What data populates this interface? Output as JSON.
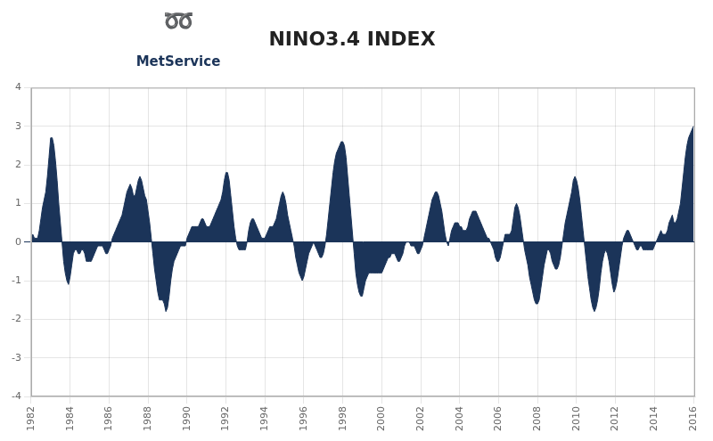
{
  "chart_data": {
    "type": "area",
    "title": "NINO3.4 INDEX",
    "annotations": [
      "➿",
      "MetService"
    ],
    "color": "#1b3459",
    "grid": true,
    "xlim": [
      1982,
      2016.09
    ],
    "xticks": [
      1982,
      1984,
      1986,
      1988,
      1990,
      1992,
      1994,
      1996,
      1998,
      2000,
      2002,
      2004,
      2006,
      2008,
      2010,
      2012,
      2014,
      2016
    ],
    "ylim": [
      -4,
      4
    ],
    "yticks": [
      -4,
      -3,
      -2,
      -1,
      0,
      1,
      2,
      3,
      4
    ],
    "x": [
      1982,
      1982.0833333333333,
      1982.1666666666667,
      1982.25,
      1982.3333333333333,
      1982.4166666666667,
      1982.5,
      1982.5833333333333,
      1982.6666666666667,
      1982.75,
      1982.8333333333333,
      1982.9166666666667,
      1983,
      1983.0833333333333,
      1983.1666666666667,
      1983.25,
      1983.3333333333333,
      1983.4166666666667,
      1983.5,
      1983.5833333333333,
      1983.6666666666667,
      1983.75,
      1983.8333333333333,
      1983.9166666666667,
      1984,
      1984.0833333333333,
      1984.1666666666667,
      1984.25,
      1984.3333333333333,
      1984.4166666666667,
      1984.5,
      1984.5833333333333,
      1984.6666666666667,
      1984.75,
      1984.8333333333333,
      1984.9166666666667,
      1985,
      1985.0833333333333,
      1985.1666666666667,
      1985.25,
      1985.3333333333333,
      1985.4166666666667,
      1985.5,
      1985.5833333333333,
      1985.6666666666667,
      1985.75,
      1985.8333333333333,
      1985.9166666666667,
      1986,
      1986.0833333333333,
      1986.1666666666667,
      1986.25,
      1986.3333333333333,
      1986.4166666666667,
      1986.5,
      1986.5833333333333,
      1986.6666666666667,
      1986.75,
      1986.8333333333333,
      1986.9166666666667,
      1987,
      1987.0833333333333,
      1987.1666666666667,
      1987.25,
      1987.3333333333333,
      1987.4166666666667,
      1987.5,
      1987.5833333333333,
      1987.6666666666667,
      1987.75,
      1987.8333333333333,
      1987.9166666666667,
      1988,
      1988.0833333333333,
      1988.1666666666667,
      1988.25,
      1988.3333333333333,
      1988.4166666666667,
      1988.5,
      1988.5833333333333,
      1988.6666666666667,
      1988.75,
      1988.8333333333333,
      1988.9166666666667,
      1989,
      1989.0833333333333,
      1989.1666666666667,
      1989.25,
      1989.3333333333333,
      1989.4166666666667,
      1989.5,
      1989.5833333333333,
      1989.6666666666667,
      1989.75,
      1989.8333333333333,
      1989.9166666666667,
      1990,
      1990.0833333333333,
      1990.1666666666667,
      1990.25,
      1990.3333333333333,
      1990.4166666666667,
      1990.5,
      1990.5833333333333,
      1990.6666666666667,
      1990.75,
      1990.8333333333333,
      1990.9166666666667,
      1991,
      1991.0833333333333,
      1991.1666666666667,
      1991.25,
      1991.3333333333333,
      1991.4166666666667,
      1991.5,
      1991.5833333333333,
      1991.6666666666667,
      1991.75,
      1991.8333333333333,
      1991.9166666666667,
      1992,
      1992.0833333333333,
      1992.1666666666667,
      1992.25,
      1992.3333333333333,
      1992.4166666666667,
      1992.5,
      1992.5833333333333,
      1992.6666666666667,
      1992.75,
      1992.8333333333333,
      1992.9166666666667,
      1993,
      1993.0833333333333,
      1993.1666666666667,
      1993.25,
      1993.3333333333333,
      1993.4166666666667,
      1993.5,
      1993.5833333333333,
      1993.6666666666667,
      1993.75,
      1993.8333333333333,
      1993.9166666666667,
      1994,
      1994.0833333333333,
      1994.1666666666667,
      1994.25,
      1994.3333333333333,
      1994.4166666666667,
      1994.5,
      1994.5833333333333,
      1994.6666666666667,
      1994.75,
      1994.8333333333333,
      1994.9166666666667,
      1995,
      1995.0833333333333,
      1995.1666666666667,
      1995.25,
      1995.3333333333333,
      1995.4166666666667,
      1995.5,
      1995.5833333333333,
      1995.6666666666667,
      1995.75,
      1995.8333333333333,
      1995.9166666666667,
      1996,
      1996.0833333333333,
      1996.1666666666667,
      1996.25,
      1996.3333333333333,
      1996.4166666666667,
      1996.5,
      1996.5833333333333,
      1996.6666666666667,
      1996.75,
      1996.8333333333333,
      1996.9166666666667,
      1997,
      1997.0833333333333,
      1997.1666666666667,
      1997.25,
      1997.3333333333333,
      1997.4166666666667,
      1997.5,
      1997.5833333333333,
      1997.6666666666667,
      1997.75,
      1997.8333333333333,
      1997.9166666666667,
      1998,
      1998.0833333333333,
      1998.1666666666667,
      1998.25,
      1998.3333333333333,
      1998.4166666666667,
      1998.5,
      1998.5833333333333,
      1998.6666666666667,
      1998.75,
      1998.8333333333333,
      1998.9166666666667,
      1999,
      1999.0833333333333,
      1999.1666666666667,
      1999.25,
      1999.3333333333333,
      1999.4166666666667,
      1999.5,
      1999.5833333333333,
      1999.6666666666667,
      1999.75,
      1999.8333333333333,
      1999.9166666666667,
      2000,
      2000.0833333333333,
      2000.1666666666667,
      2000.25,
      2000.3333333333333,
      2000.4166666666667,
      2000.5,
      2000.5833333333333,
      2000.6666666666667,
      2000.75,
      2000.8333333333333,
      2000.9166666666667,
      2001,
      2001.0833333333333,
      2001.1666666666667,
      2001.25,
      2001.3333333333333,
      2001.4166666666667,
      2001.5,
      2001.5833333333333,
      2001.6666666666667,
      2001.75,
      2001.8333333333333,
      2001.9166666666667,
      2002,
      2002.0833333333333,
      2002.1666666666667,
      2002.25,
      2002.3333333333333,
      2002.4166666666667,
      2002.5,
      2002.5833333333333,
      2002.6666666666667,
      2002.75,
      2002.8333333333333,
      2002.9166666666667,
      2003,
      2003.0833333333333,
      2003.1666666666667,
      2003.25,
      2003.3333333333333,
      2003.4166666666667,
      2003.5,
      2003.5833333333333,
      2003.6666666666667,
      2003.75,
      2003.8333333333333,
      2003.9166666666667,
      2004,
      2004.0833333333333,
      2004.1666666666667,
      2004.25,
      2004.3333333333333,
      2004.4166666666667,
      2004.5,
      2004.5833333333333,
      2004.6666666666667,
      2004.75,
      2004.8333333333333,
      2004.9166666666667,
      2005,
      2005.0833333333333,
      2005.1666666666667,
      2005.25,
      2005.3333333333333,
      2005.4166666666667,
      2005.5,
      2005.5833333333333,
      2005.6666666666667,
      2005.75,
      2005.8333333333333,
      2005.9166666666667,
      2006,
      2006.0833333333333,
      2006.1666666666667,
      2006.25,
      2006.3333333333333,
      2006.4166666666667,
      2006.5,
      2006.5833333333333,
      2006.6666666666667,
      2006.75,
      2006.8333333333333,
      2006.9166666666667,
      2007,
      2007.0833333333333,
      2007.1666666666667,
      2007.25,
      2007.3333333333333,
      2007.4166666666667,
      2007.5,
      2007.5833333333333,
      2007.6666666666667,
      2007.75,
      2007.8333333333333,
      2007.9166666666667,
      2008,
      2008.0833333333333,
      2008.1666666666667,
      2008.25,
      2008.3333333333333,
      2008.4166666666667,
      2008.5,
      2008.5833333333333,
      2008.6666666666667,
      2008.75,
      2008.8333333333333,
      2008.9166666666667,
      2009,
      2009.0833333333333,
      2009.1666666666667,
      2009.25,
      2009.3333333333333,
      2009.4166666666667,
      2009.5,
      2009.5833333333333,
      2009.6666666666667,
      2009.75,
      2009.8333333333333,
      2009.9166666666667,
      2010,
      2010.0833333333333,
      2010.1666666666667,
      2010.25,
      2010.3333333333333,
      2010.4166666666667,
      2010.5,
      2010.5833333333333,
      2010.6666666666667,
      2010.75,
      2010.8333333333333,
      2010.9166666666667,
      2011,
      2011.0833333333333,
      2011.1666666666667,
      2011.25,
      2011.3333333333333,
      2011.4166666666667,
      2011.5,
      2011.5833333333333,
      2011.6666666666667,
      2011.75,
      2011.8333333333333,
      2011.9166666666667,
      2012,
      2012.0833333333333,
      2012.1666666666667,
      2012.25,
      2012.3333333333333,
      2012.4166666666667,
      2012.5,
      2012.5833333333333,
      2012.6666666666667,
      2012.75,
      2012.8333333333333,
      2012.9166666666667,
      2013,
      2013.0833333333333,
      2013.1666666666667,
      2013.25,
      2013.3333333333333,
      2013.4166666666667,
      2013.5,
      2013.5833333333333,
      2013.6666666666667,
      2013.75,
      2013.8333333333333,
      2013.9166666666667,
      2014,
      2014.0833333333333,
      2014.1666666666667,
      2014.25,
      2014.3333333333333,
      2014.4166666666667,
      2014.5,
      2014.5833333333333,
      2014.6666666666667,
      2014.75,
      2014.8333333333333,
      2014.9166666666667,
      2015,
      2015.0833333333333,
      2015.1666666666667,
      2015.25,
      2015.3333333333333,
      2015.4166666666667,
      2015.5,
      2015.5833333333333,
      2015.6666666666667,
      2015.75,
      2015.8333333333333,
      2015.9166666666667,
      2016
    ],
    "values": [
      0.1,
      0.2,
      0.1,
      0.1,
      0.1,
      0.3,
      0.6,
      0.9,
      1.1,
      1.3,
      1.7,
      2.2,
      2.7,
      2.7,
      2.5,
      2.1,
      1.6,
      1.0,
      0.5,
      0.0,
      -0.5,
      -0.8,
      -1.0,
      -1.1,
      -0.9,
      -0.6,
      -0.3,
      -0.2,
      -0.2,
      -0.3,
      -0.3,
      -0.2,
      -0.2,
      -0.3,
      -0.5,
      -0.5,
      -0.5,
      -0.5,
      -0.4,
      -0.3,
      -0.2,
      -0.1,
      -0.1,
      -0.1,
      -0.1,
      -0.2,
      -0.3,
      -0.3,
      -0.2,
      -0.1,
      0.1,
      0.2,
      0.3,
      0.4,
      0.5,
      0.6,
      0.7,
      0.9,
      1.1,
      1.3,
      1.4,
      1.5,
      1.4,
      1.2,
      1.2,
      1.4,
      1.6,
      1.7,
      1.6,
      1.4,
      1.2,
      1.1,
      0.8,
      0.5,
      0.1,
      -0.3,
      -0.7,
      -1.0,
      -1.3,
      -1.5,
      -1.5,
      -1.5,
      -1.6,
      -1.8,
      -1.7,
      -1.4,
      -1.0,
      -0.7,
      -0.5,
      -0.4,
      -0.3,
      -0.2,
      -0.1,
      -0.1,
      -0.1,
      -0.1,
      0.1,
      0.2,
      0.3,
      0.4,
      0.4,
      0.4,
      0.4,
      0.4,
      0.5,
      0.6,
      0.6,
      0.5,
      0.4,
      0.4,
      0.4,
      0.5,
      0.6,
      0.7,
      0.8,
      0.9,
      1.0,
      1.1,
      1.3,
      1.6,
      1.8,
      1.8,
      1.6,
      1.2,
      0.8,
      0.4,
      0.1,
      -0.1,
      -0.2,
      -0.2,
      -0.2,
      -0.2,
      -0.2,
      0.0,
      0.3,
      0.5,
      0.6,
      0.6,
      0.5,
      0.4,
      0.3,
      0.2,
      0.1,
      0.1,
      0.1,
      0.2,
      0.3,
      0.4,
      0.4,
      0.4,
      0.5,
      0.6,
      0.8,
      1.0,
      1.2,
      1.3,
      1.2,
      1.0,
      0.7,
      0.5,
      0.3,
      0.1,
      -0.1,
      -0.4,
      -0.6,
      -0.8,
      -0.9,
      -1.0,
      -0.9,
      -0.7,
      -0.5,
      -0.3,
      -0.2,
      -0.1,
      0.0,
      -0.1,
      -0.2,
      -0.3,
      -0.4,
      -0.4,
      -0.3,
      -0.1,
      0.2,
      0.6,
      1.0,
      1.4,
      1.8,
      2.1,
      2.3,
      2.4,
      2.5,
      2.6,
      2.6,
      2.5,
      2.2,
      1.7,
      1.2,
      0.7,
      0.2,
      -0.3,
      -0.8,
      -1.1,
      -1.3,
      -1.4,
      -1.4,
      -1.2,
      -1.0,
      -0.9,
      -0.8,
      -0.8,
      -0.8,
      -0.8,
      -0.8,
      -0.8,
      -0.8,
      -0.8,
      -0.8,
      -0.7,
      -0.6,
      -0.5,
      -0.4,
      -0.4,
      -0.3,
      -0.3,
      -0.3,
      -0.4,
      -0.5,
      -0.5,
      -0.4,
      -0.3,
      -0.1,
      0.0,
      0.0,
      0.0,
      -0.1,
      -0.1,
      -0.1,
      -0.2,
      -0.3,
      -0.3,
      -0.2,
      -0.1,
      0.1,
      0.3,
      0.5,
      0.7,
      0.9,
      1.1,
      1.2,
      1.3,
      1.3,
      1.2,
      1.0,
      0.8,
      0.5,
      0.2,
      0.0,
      -0.1,
      0.1,
      0.3,
      0.4,
      0.5,
      0.5,
      0.5,
      0.4,
      0.4,
      0.3,
      0.3,
      0.3,
      0.4,
      0.6,
      0.7,
      0.8,
      0.8,
      0.8,
      0.7,
      0.6,
      0.5,
      0.4,
      0.3,
      0.2,
      0.1,
      0.1,
      0.0,
      -0.1,
      -0.2,
      -0.4,
      -0.5,
      -0.5,
      -0.4,
      -0.2,
      0.0,
      0.2,
      0.2,
      0.2,
      0.2,
      0.3,
      0.6,
      0.9,
      1.0,
      0.9,
      0.7,
      0.4,
      0.1,
      -0.2,
      -0.4,
      -0.6,
      -0.9,
      -1.1,
      -1.3,
      -1.5,
      -1.6,
      -1.6,
      -1.5,
      -1.2,
      -0.9,
      -0.6,
      -0.4,
      -0.2,
      -0.2,
      -0.3,
      -0.5,
      -0.6,
      -0.7,
      -0.7,
      -0.6,
      -0.4,
      -0.1,
      0.2,
      0.5,
      0.7,
      0.9,
      1.1,
      1.3,
      1.6,
      1.7,
      1.6,
      1.4,
      1.1,
      0.7,
      0.3,
      -0.1,
      -0.5,
      -0.9,
      -1.2,
      -1.5,
      -1.7,
      -1.8,
      -1.7,
      -1.5,
      -1.2,
      -0.8,
      -0.5,
      -0.3,
      -0.2,
      -0.3,
      -0.5,
      -0.8,
      -1.1,
      -1.3,
      -1.2,
      -1.0,
      -0.7,
      -0.4,
      -0.1,
      0.1,
      0.2,
      0.3,
      0.3,
      0.2,
      0.1,
      0.0,
      -0.1,
      -0.2,
      -0.2,
      -0.1,
      -0.1,
      -0.2,
      -0.2,
      -0.2,
      -0.2,
      -0.2,
      -0.2,
      -0.2,
      -0.1,
      0.0,
      0.1,
      0.2,
      0.3,
      0.2,
      0.2,
      0.2,
      0.3,
      0.5,
      0.6,
      0.7,
      0.5,
      0.5,
      0.6,
      0.8,
      1.0,
      1.4,
      1.8,
      2.2,
      2.5,
      2.7,
      2.8,
      2.9,
      3.0
    ]
  }
}
